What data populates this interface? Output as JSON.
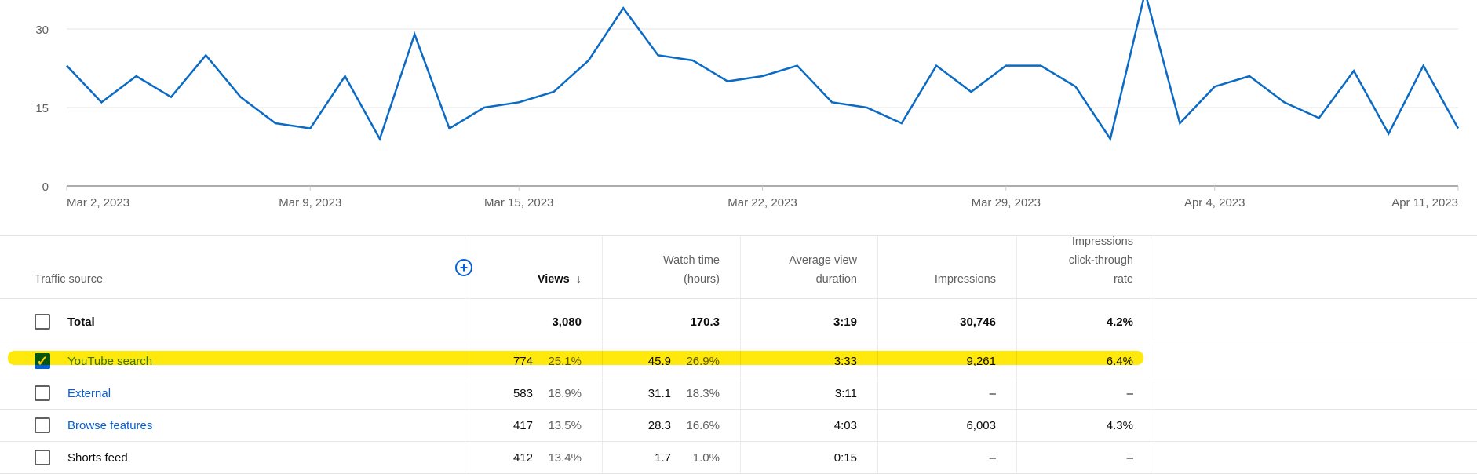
{
  "chart_data": {
    "type": "line",
    "x": [
      "Mar 2",
      "Mar 3",
      "Mar 4",
      "Mar 5",
      "Mar 6",
      "Mar 7",
      "Mar 8",
      "Mar 9",
      "Mar 10",
      "Mar 11",
      "Mar 12",
      "Mar 13",
      "Mar 14",
      "Mar 15",
      "Mar 16",
      "Mar 17",
      "Mar 18",
      "Mar 19",
      "Mar 20",
      "Mar 21",
      "Mar 22",
      "Mar 23",
      "Mar 24",
      "Mar 25",
      "Mar 26",
      "Mar 27",
      "Mar 28",
      "Mar 29",
      "Mar 30",
      "Mar 31",
      "Apr 1",
      "Apr 2",
      "Apr 3",
      "Apr 4",
      "Apr 5",
      "Apr 6",
      "Apr 7",
      "Apr 8",
      "Apr 9",
      "Apr 10",
      "Apr 11"
    ],
    "values": [
      23,
      16,
      21,
      17,
      25,
      17,
      12,
      11,
      21,
      9,
      29,
      11,
      15,
      16,
      18,
      24,
      34,
      25,
      24,
      20,
      21,
      23,
      16,
      15,
      12,
      23,
      18,
      23,
      23,
      19,
      9,
      37,
      12,
      19,
      21,
      16,
      13,
      22,
      10,
      23,
      11
    ],
    "xtick_labels": [
      "Mar 2, 2023",
      "Mar 9, 2023",
      "Mar 15, 2023",
      "Mar 22, 2023",
      "Mar 29, 2023",
      "Apr 4, 2023",
      "Apr 11, 2023"
    ],
    "xtick_index": [
      0,
      7,
      13,
      20,
      27,
      33,
      40
    ],
    "ytick_labels": [
      "0",
      "15",
      "30"
    ],
    "ylim": [
      0,
      36
    ],
    "grid": true,
    "color": "#0b6ac4"
  },
  "table": {
    "add_icon": "plus-circle-icon",
    "headers": [
      "Traffic source",
      "Views",
      "Watch time (hours)",
      "Average view duration",
      "Impressions",
      "Impressions click-through rate"
    ],
    "sort_icon": "↓",
    "total": {
      "label": "Total",
      "views": "3,080",
      "watch": "170.3",
      "avd": "3:19",
      "impr": "30,746",
      "ctr": "4.2%"
    },
    "rows": [
      {
        "label": "YouTube search",
        "views": "774",
        "views_pct": "25.1%",
        "watch": "45.9",
        "watch_pct": "26.9%",
        "avd": "3:33",
        "impr": "9,261",
        "ctr": "6.4%",
        "checked": true
      },
      {
        "label": "External",
        "views": "583",
        "views_pct": "18.9%",
        "watch": "31.1",
        "watch_pct": "18.3%",
        "avd": "3:11",
        "impr": "–",
        "ctr": "–",
        "checked": false
      },
      {
        "label": "Browse features",
        "views": "417",
        "views_pct": "13.5%",
        "watch": "28.3",
        "watch_pct": "16.6%",
        "avd": "4:03",
        "impr": "6,003",
        "ctr": "4.3%",
        "checked": false
      },
      {
        "label": "Shorts feed",
        "views": "412",
        "views_pct": "13.4%",
        "watch": "1.7",
        "watch_pct": "1.0%",
        "avd": "0:15",
        "impr": "–",
        "ctr": "–",
        "checked": false
      }
    ],
    "highlight_color": "#ffe800"
  }
}
